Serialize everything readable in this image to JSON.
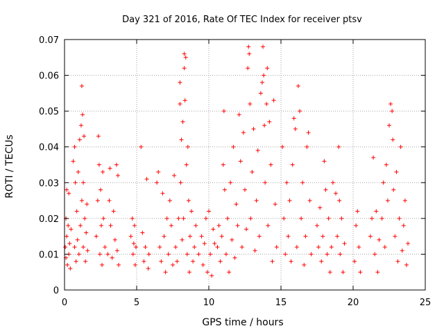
{
  "chart_data": {
    "type": "scatter",
    "title": "Day 321 of 2016, Rate Of TEC Index for receiver ptsv",
    "xlabel": "GPS time / hours",
    "ylabel": "ROTI / TECUs",
    "xlim": [
      0,
      25
    ],
    "ylim": [
      0,
      0.07
    ],
    "xticks": [
      0,
      5,
      10,
      15,
      20,
      25
    ],
    "xtick_labels": [
      "0",
      "5",
      "10",
      "15",
      "20",
      "25"
    ],
    "yticks": [
      0,
      0.01,
      0.02,
      0.03,
      0.04,
      0.05,
      0.06,
      0.07
    ],
    "ytick_labels": [
      "0",
      "0.01",
      "0.02",
      "0.03",
      "0.04",
      "0.05",
      "0.06",
      "0.07"
    ],
    "grid": true,
    "marker": "+",
    "color": "#ff0000",
    "series": [
      {
        "points": [
          [
            0.05,
            0.012
          ],
          [
            0.1,
            0.009
          ],
          [
            0.1,
            0.02
          ],
          [
            0.15,
            0.015
          ],
          [
            0.15,
            0.028
          ],
          [
            0.2,
            0.007
          ],
          [
            0.25,
            0.018
          ],
          [
            0.3,
            0.01
          ],
          [
            0.3,
            0.027
          ],
          [
            0.35,
            0.013
          ],
          [
            0.4,
            0.006
          ],
          [
            0.45,
            0.017
          ],
          [
            0.6,
            0.036
          ],
          [
            0.7,
            0.04
          ],
          [
            0.7,
            0.012
          ],
          [
            0.75,
            0.03
          ],
          [
            0.8,
            0.008
          ],
          [
            0.85,
            0.022
          ],
          [
            0.9,
            0.014
          ],
          [
            0.95,
            0.033
          ],
          [
            1.0,
            0.01
          ],
          [
            1.05,
            0.042
          ],
          [
            1.1,
            0.018
          ],
          [
            1.15,
            0.046
          ],
          [
            1.2,
            0.057
          ],
          [
            1.2,
            0.025
          ],
          [
            1.25,
            0.049
          ],
          [
            1.3,
            0.012
          ],
          [
            1.3,
            0.03
          ],
          [
            1.35,
            0.043
          ],
          [
            1.4,
            0.02
          ],
          [
            1.45,
            0.008
          ],
          [
            1.5,
            0.016
          ],
          [
            1.55,
            0.024
          ],
          [
            1.6,
            0.011
          ],
          [
            2.2,
            0.015
          ],
          [
            2.3,
            0.025
          ],
          [
            2.35,
            0.043
          ],
          [
            2.4,
            0.035
          ],
          [
            2.45,
            0.01
          ],
          [
            2.5,
            0.028
          ],
          [
            2.55,
            0.018
          ],
          [
            2.6,
            0.007
          ],
          [
            2.65,
            0.033
          ],
          [
            2.7,
            0.02
          ],
          [
            2.8,
            0.012
          ],
          [
            3.0,
            0.01
          ],
          [
            3.1,
            0.025
          ],
          [
            3.15,
            0.034
          ],
          [
            3.2,
            0.018
          ],
          [
            3.3,
            0.009
          ],
          [
            3.4,
            0.022
          ],
          [
            3.5,
            0.014
          ],
          [
            3.6,
            0.035
          ],
          [
            3.65,
            0.011
          ],
          [
            3.7,
            0.032
          ],
          [
            3.75,
            0.007
          ],
          [
            4.6,
            0.015
          ],
          [
            4.7,
            0.02
          ],
          [
            4.75,
            0.01
          ],
          [
            4.8,
            0.013
          ],
          [
            4.85,
            0.018
          ],
          [
            4.9,
            0.007
          ],
          [
            4.95,
            0.012
          ],
          [
            5.3,
            0.04
          ],
          [
            5.4,
            0.016
          ],
          [
            5.5,
            0.008
          ],
          [
            5.6,
            0.012
          ],
          [
            5.7,
            0.031
          ],
          [
            5.8,
            0.006
          ],
          [
            5.85,
            0.01
          ],
          [
            6.4,
            0.03
          ],
          [
            6.5,
            0.033
          ],
          [
            6.6,
            0.012
          ],
          [
            6.7,
            0.008
          ],
          [
            6.8,
            0.027
          ],
          [
            6.9,
            0.015
          ],
          [
            7.0,
            0.005
          ],
          [
            7.1,
            0.02
          ],
          [
            7.2,
            0.01
          ],
          [
            7.3,
            0.025
          ],
          [
            7.4,
            0.018
          ],
          [
            7.5,
            0.007
          ],
          [
            7.6,
            0.032
          ],
          [
            7.7,
            0.012
          ],
          [
            7.8,
            0.008
          ],
          [
            7.9,
            0.02
          ],
          [
            8.0,
            0.052
          ],
          [
            8.0,
            0.058
          ],
          [
            8.05,
            0.03
          ],
          [
            8.1,
            0.042
          ],
          [
            8.15,
            0.014
          ],
          [
            8.2,
            0.047
          ],
          [
            8.25,
            0.02
          ],
          [
            8.3,
            0.066
          ],
          [
            8.3,
            0.062
          ],
          [
            8.35,
            0.053
          ],
          [
            8.4,
            0.065
          ],
          [
            8.45,
            0.035
          ],
          [
            8.5,
            0.01
          ],
          [
            8.55,
            0.04
          ],
          [
            8.6,
            0.025
          ],
          [
            8.65,
            0.005
          ],
          [
            8.7,
            0.015
          ],
          [
            8.8,
            0.022
          ],
          [
            8.9,
            0.008
          ],
          [
            9.0,
            0.012
          ],
          [
            9.1,
            0.018
          ],
          [
            9.3,
            0.01
          ],
          [
            9.5,
            0.015
          ],
          [
            9.6,
            0.007
          ],
          [
            9.7,
            0.013
          ],
          [
            9.8,
            0.02
          ],
          [
            9.9,
            0.005
          ],
          [
            10.0,
            0.022
          ],
          [
            10.1,
            0.01
          ],
          [
            10.2,
            0.004
          ],
          [
            10.3,
            0.017
          ],
          [
            10.4,
            0.013
          ],
          [
            10.6,
            0.012
          ],
          [
            10.7,
            0.018
          ],
          [
            10.8,
            0.008
          ],
          [
            10.9,
            0.015
          ],
          [
            11.0,
            0.035
          ],
          [
            11.05,
            0.05
          ],
          [
            11.1,
            0.028
          ],
          [
            11.2,
            0.01
          ],
          [
            11.3,
            0.02
          ],
          [
            11.4,
            0.005
          ],
          [
            11.5,
            0.03
          ],
          [
            11.6,
            0.014
          ],
          [
            11.7,
            0.04
          ],
          [
            11.8,
            0.009
          ],
          [
            11.9,
            0.024
          ],
          [
            12.0,
            0.018
          ],
          [
            12.1,
            0.049
          ],
          [
            12.2,
            0.036
          ],
          [
            12.3,
            0.012
          ],
          [
            12.4,
            0.044
          ],
          [
            12.5,
            0.028
          ],
          [
            12.6,
            0.017
          ],
          [
            12.7,
            0.062
          ],
          [
            12.75,
            0.068
          ],
          [
            12.8,
            0.066
          ],
          [
            12.85,
            0.052
          ],
          [
            12.9,
            0.02
          ],
          [
            13.0,
            0.033
          ],
          [
            13.1,
            0.045
          ],
          [
            13.2,
            0.011
          ],
          [
            13.3,
            0.025
          ],
          [
            13.4,
            0.039
          ],
          [
            13.5,
            0.015
          ],
          [
            13.6,
            0.055
          ],
          [
            13.7,
            0.058
          ],
          [
            13.75,
            0.068
          ],
          [
            13.8,
            0.06
          ],
          [
            13.85,
            0.046
          ],
          [
            13.9,
            0.03
          ],
          [
            14.0,
            0.052
          ],
          [
            14.05,
            0.062
          ],
          [
            14.1,
            0.018
          ],
          [
            14.2,
            0.047
          ],
          [
            14.3,
            0.035
          ],
          [
            14.4,
            0.008
          ],
          [
            14.5,
            0.053
          ],
          [
            14.6,
            0.024
          ],
          [
            14.7,
            0.012
          ],
          [
            15.1,
            0.04
          ],
          [
            15.2,
            0.02
          ],
          [
            15.3,
            0.01
          ],
          [
            15.4,
            0.03
          ],
          [
            15.5,
            0.015
          ],
          [
            15.6,
            0.025
          ],
          [
            15.7,
            0.008
          ],
          [
            15.8,
            0.035
          ],
          [
            15.9,
            0.048
          ],
          [
            16.0,
            0.045
          ],
          [
            16.1,
            0.012
          ],
          [
            16.2,
            0.057
          ],
          [
            16.3,
            0.05
          ],
          [
            16.4,
            0.02
          ],
          [
            16.5,
            0.03
          ],
          [
            16.6,
            0.007
          ],
          [
            16.7,
            0.015
          ],
          [
            16.8,
            0.04
          ],
          [
            16.9,
            0.044
          ],
          [
            17.0,
            0.025
          ],
          [
            17.1,
            0.01
          ],
          [
            17.5,
            0.018
          ],
          [
            17.6,
            0.012
          ],
          [
            17.7,
            0.023
          ],
          [
            17.8,
            0.008
          ],
          [
            17.9,
            0.015
          ],
          [
            18.0,
            0.036
          ],
          [
            18.1,
            0.028
          ],
          [
            18.2,
            0.01
          ],
          [
            18.3,
            0.02
          ],
          [
            18.4,
            0.005
          ],
          [
            18.5,
            0.012
          ],
          [
            18.6,
            0.03
          ],
          [
            18.8,
            0.027
          ],
          [
            18.9,
            0.015
          ],
          [
            19.0,
            0.04
          ],
          [
            19.05,
            0.025
          ],
          [
            19.1,
            0.01
          ],
          [
            19.2,
            0.02
          ],
          [
            19.3,
            0.005
          ],
          [
            19.4,
            0.013
          ],
          [
            20.1,
            0.008
          ],
          [
            20.2,
            0.018
          ],
          [
            20.3,
            0.022
          ],
          [
            20.4,
            0.012
          ],
          [
            20.5,
            0.005
          ],
          [
            21.2,
            0.015
          ],
          [
            21.3,
            0.02
          ],
          [
            21.4,
            0.037
          ],
          [
            21.5,
            0.01
          ],
          [
            21.6,
            0.022
          ],
          [
            21.7,
            0.005
          ],
          [
            21.8,
            0.014
          ],
          [
            22.0,
            0.02
          ],
          [
            22.1,
            0.03
          ],
          [
            22.2,
            0.012
          ],
          [
            22.3,
            0.035
          ],
          [
            22.4,
            0.025
          ],
          [
            22.5,
            0.046
          ],
          [
            22.6,
            0.052
          ],
          [
            22.7,
            0.05
          ],
          [
            22.75,
            0.042
          ],
          [
            22.8,
            0.028
          ],
          [
            22.9,
            0.015
          ],
          [
            23.0,
            0.033
          ],
          [
            23.1,
            0.008
          ],
          [
            23.2,
            0.02
          ],
          [
            23.3,
            0.04
          ],
          [
            23.4,
            0.011
          ],
          [
            23.5,
            0.018
          ],
          [
            23.6,
            0.025
          ],
          [
            23.7,
            0.007
          ],
          [
            23.8,
            0.013
          ]
        ]
      }
    ]
  }
}
